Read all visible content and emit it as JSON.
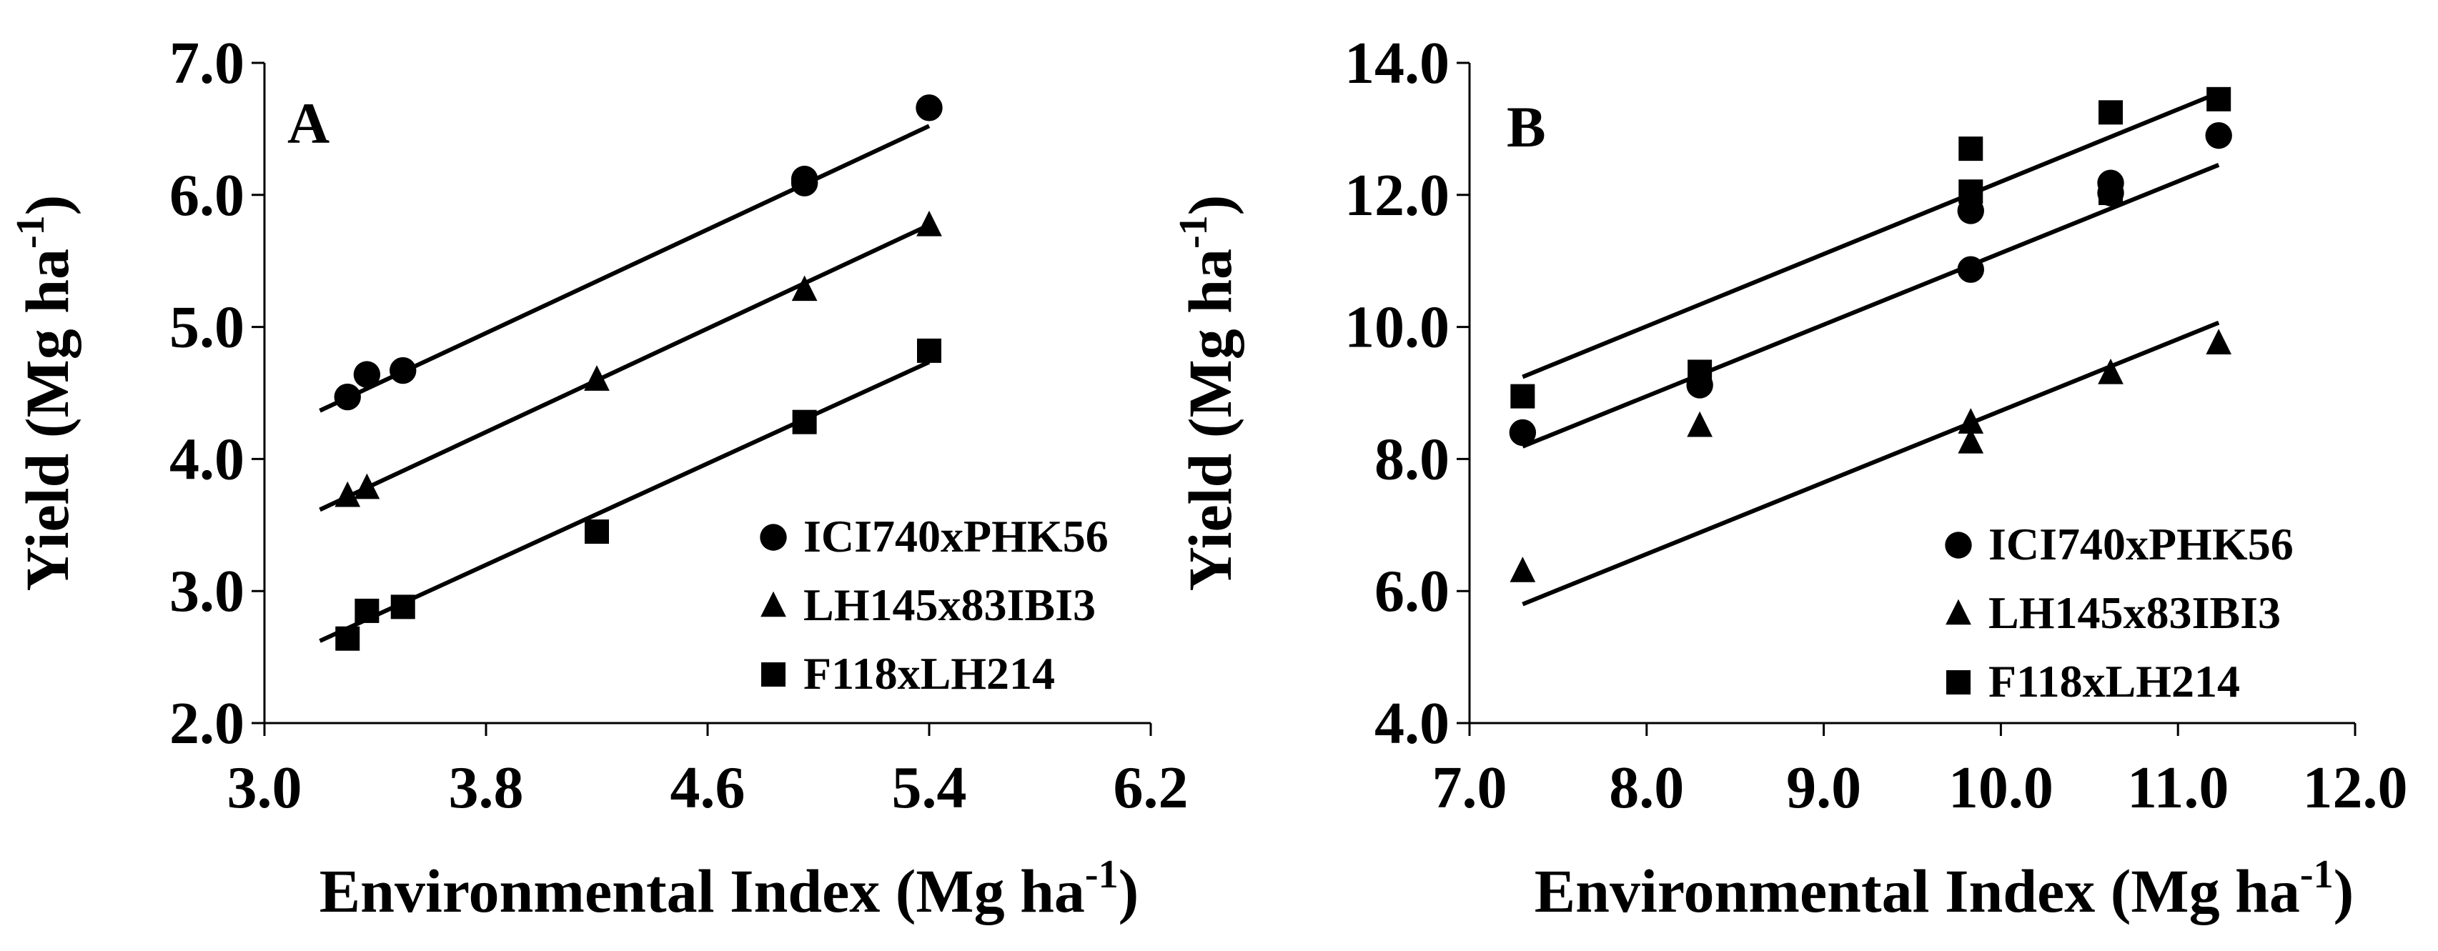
{
  "chart_data": [
    {
      "panel": "A",
      "type": "scatter",
      "xlabel": "Environmental Index (Mg ha",
      "ylabel": "Yield (Mg ha",
      "unit_superscript": "-1",
      "unit_close": ")",
      "xlim": [
        3.0,
        6.2
      ],
      "ylim": [
        2.0,
        7.0
      ],
      "x_ticks": [
        3.0,
        3.8,
        4.6,
        5.4,
        6.2
      ],
      "y_ticks": [
        2.0,
        3.0,
        4.0,
        5.0,
        6.0,
        7.0
      ],
      "legend_position": "bottom-right",
      "series": [
        {
          "name": "ICI740xPHK56",
          "marker": "circle",
          "points": [
            [
              3.3,
              4.47
            ],
            [
              3.37,
              4.64
            ],
            [
              3.5,
              4.67
            ],
            [
              4.95,
              6.12
            ],
            [
              4.95,
              6.09
            ],
            [
              5.4,
              6.66
            ]
          ],
          "fit": {
            "slope": 0.98,
            "intercept": 1.23,
            "x_range": [
              3.2,
              5.4
            ]
          }
        },
        {
          "name": "LH145x83IBI3",
          "marker": "triangle",
          "points": [
            [
              3.3,
              3.72
            ],
            [
              3.37,
              3.78
            ],
            [
              4.2,
              4.6
            ],
            [
              4.95,
              5.28
            ],
            [
              5.4,
              5.77
            ]
          ],
          "fit": {
            "slope": 0.98,
            "intercept": 0.48,
            "x_range": [
              3.2,
              5.4
            ]
          }
        },
        {
          "name": "F118xLH214",
          "marker": "square",
          "points": [
            [
              3.3,
              2.64
            ],
            [
              3.37,
              2.85
            ],
            [
              3.5,
              2.88
            ],
            [
              4.2,
              3.45
            ],
            [
              4.95,
              4.28
            ],
            [
              5.4,
              4.82
            ]
          ],
          "fit": {
            "slope": 0.96,
            "intercept": -0.45,
            "x_range": [
              3.2,
              5.4
            ]
          }
        }
      ]
    },
    {
      "panel": "B",
      "type": "scatter",
      "xlabel": "Environmental Index (Mg ha",
      "ylabel": "Yield (Mg ha",
      "unit_superscript": "-1",
      "unit_close": ")",
      "xlim": [
        7.0,
        12.0
      ],
      "ylim": [
        4.0,
        14.0
      ],
      "x_ticks": [
        7.0,
        8.0,
        9.0,
        10.0,
        11.0,
        12.0
      ],
      "y_ticks": [
        4.0,
        6.0,
        8.0,
        10.0,
        12.0,
        14.0
      ],
      "legend_position": "bottom-right",
      "series": [
        {
          "name": "ICI740xPHK56",
          "marker": "circle",
          "points": [
            [
              7.3,
              8.4
            ],
            [
              8.3,
              9.12
            ],
            [
              9.83,
              10.87
            ],
            [
              9.83,
              11.76
            ],
            [
              10.62,
              12.03
            ],
            [
              10.62,
              12.18
            ],
            [
              11.23,
              12.9
            ]
          ],
          "fit": {
            "slope": 1.085,
            "intercept": 0.27,
            "x_range": [
              7.3,
              11.23
            ]
          }
        },
        {
          "name": "LH145x83IBI3",
          "marker": "triangle",
          "points": [
            [
              7.3,
              6.3
            ],
            [
              8.3,
              8.5
            ],
            [
              9.83,
              8.55
            ],
            [
              9.83,
              8.25
            ],
            [
              10.62,
              9.3
            ],
            [
              11.23,
              9.75
            ]
          ],
          "fit": {
            "slope": 1.085,
            "intercept": -2.12,
            "x_range": [
              7.3,
              11.23
            ]
          }
        },
        {
          "name": "F118xLH214",
          "marker": "square",
          "points": [
            [
              7.3,
              8.95
            ],
            [
              8.3,
              9.32
            ],
            [
              9.83,
              12.05
            ],
            [
              9.83,
              12.7
            ],
            [
              10.62,
              13.25
            ],
            [
              10.62,
              12.03
            ],
            [
              11.23,
              13.45
            ]
          ],
          "fit": {
            "slope": 1.095,
            "intercept": 1.25,
            "x_range": [
              7.3,
              11.23
            ]
          }
        }
      ]
    }
  ]
}
